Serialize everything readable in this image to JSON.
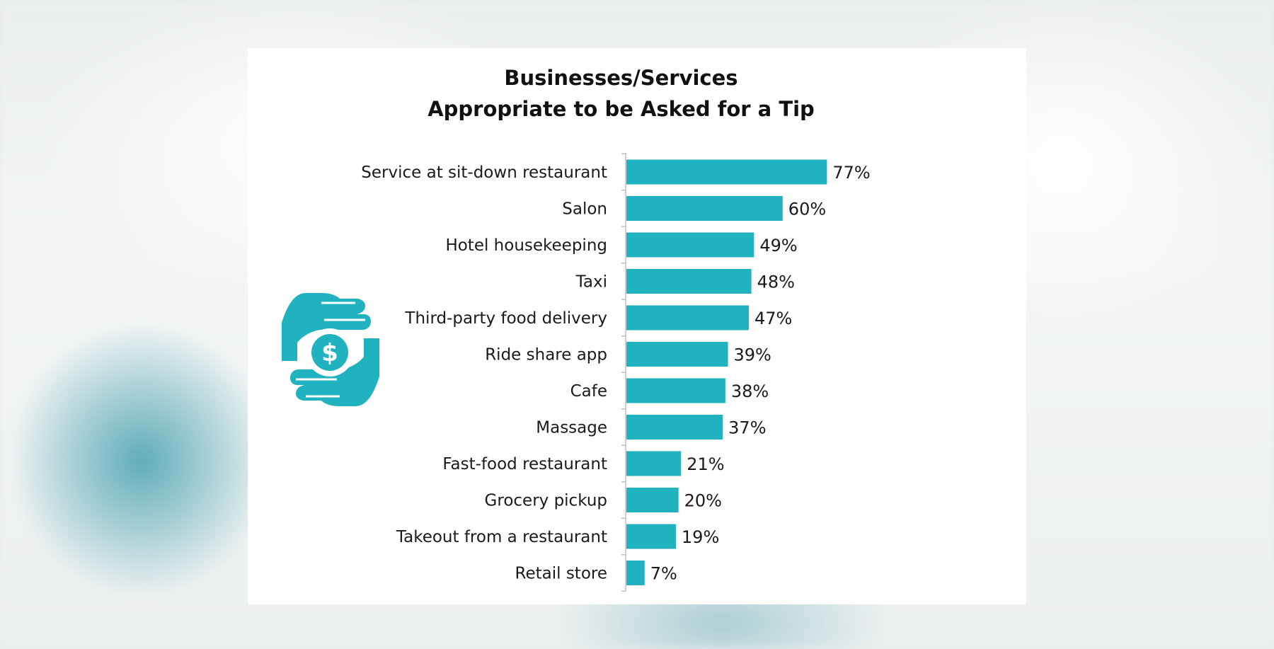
{
  "colors": {
    "bar": "#20b2be",
    "icon": "#20b2be"
  },
  "icon": "hands-dollar-icon",
  "chart_data": {
    "type": "bar",
    "orientation": "horizontal",
    "title": "Businesses/Services",
    "subtitle": "Appropriate to be Asked for a Tip",
    "categories": [
      "Service at sit-down restaurant",
      "Salon",
      "Hotel housekeeping",
      "Taxi",
      "Third-party food delivery",
      "Ride share app",
      "Cafe",
      "Massage",
      "Fast-food restaurant",
      "Grocery pickup",
      "Takeout from a restaurant",
      "Retail store"
    ],
    "values": [
      77,
      60,
      49,
      48,
      47,
      39,
      38,
      37,
      21,
      20,
      19,
      7
    ],
    "value_labels": [
      "77%",
      "60%",
      "49%",
      "48%",
      "47%",
      "39%",
      "38%",
      "37%",
      "21%",
      "20%",
      "19%",
      "7%"
    ],
    "unit": "%",
    "xlim": [
      0,
      100
    ],
    "grid": false,
    "legend": "none"
  }
}
